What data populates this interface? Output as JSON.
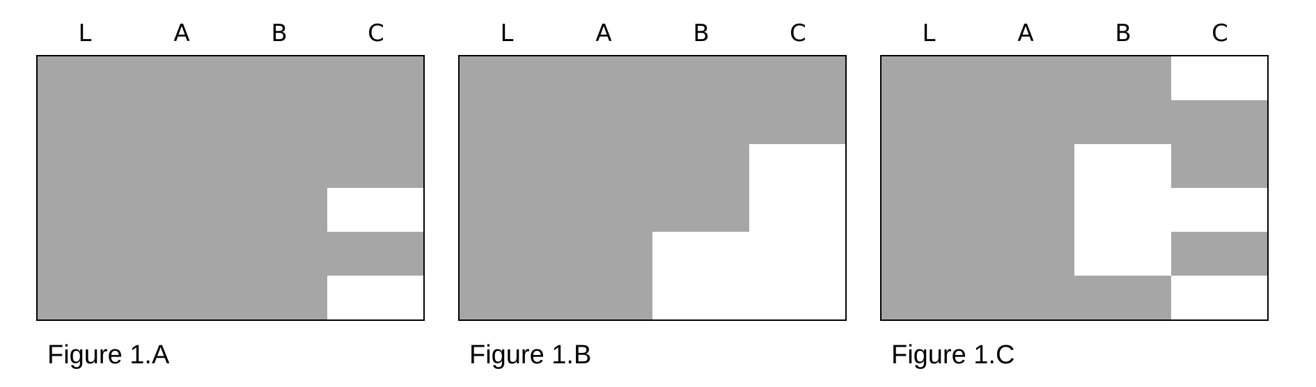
{
  "colors": {
    "filled": "#a6a6a6",
    "empty": "#ffffff",
    "border": "#000000"
  },
  "figures": [
    {
      "caption": "Figure 1.A",
      "columns": [
        "L",
        "A",
        "B",
        "C"
      ],
      "grid": [
        [
          1,
          1,
          1,
          1
        ],
        [
          1,
          1,
          1,
          1
        ],
        [
          1,
          1,
          1,
          1
        ],
        [
          1,
          1,
          1,
          0
        ],
        [
          1,
          1,
          1,
          1
        ],
        [
          1,
          1,
          1,
          0
        ]
      ]
    },
    {
      "caption": "Figure 1.B",
      "columns": [
        "L",
        "A",
        "B",
        "C"
      ],
      "grid": [
        [
          1,
          1,
          1,
          1
        ],
        [
          1,
          1,
          1,
          1
        ],
        [
          1,
          1,
          1,
          0
        ],
        [
          1,
          1,
          1,
          0
        ],
        [
          1,
          1,
          0,
          0
        ],
        [
          1,
          1,
          0,
          0
        ]
      ]
    },
    {
      "caption": "Figure 1.C",
      "columns": [
        "L",
        "A",
        "B",
        "C"
      ],
      "grid": [
        [
          1,
          1,
          1,
          0
        ],
        [
          1,
          1,
          1,
          1
        ],
        [
          1,
          1,
          0,
          1
        ],
        [
          1,
          1,
          0,
          0
        ],
        [
          1,
          1,
          0,
          1
        ],
        [
          1,
          1,
          1,
          0
        ]
      ]
    }
  ]
}
